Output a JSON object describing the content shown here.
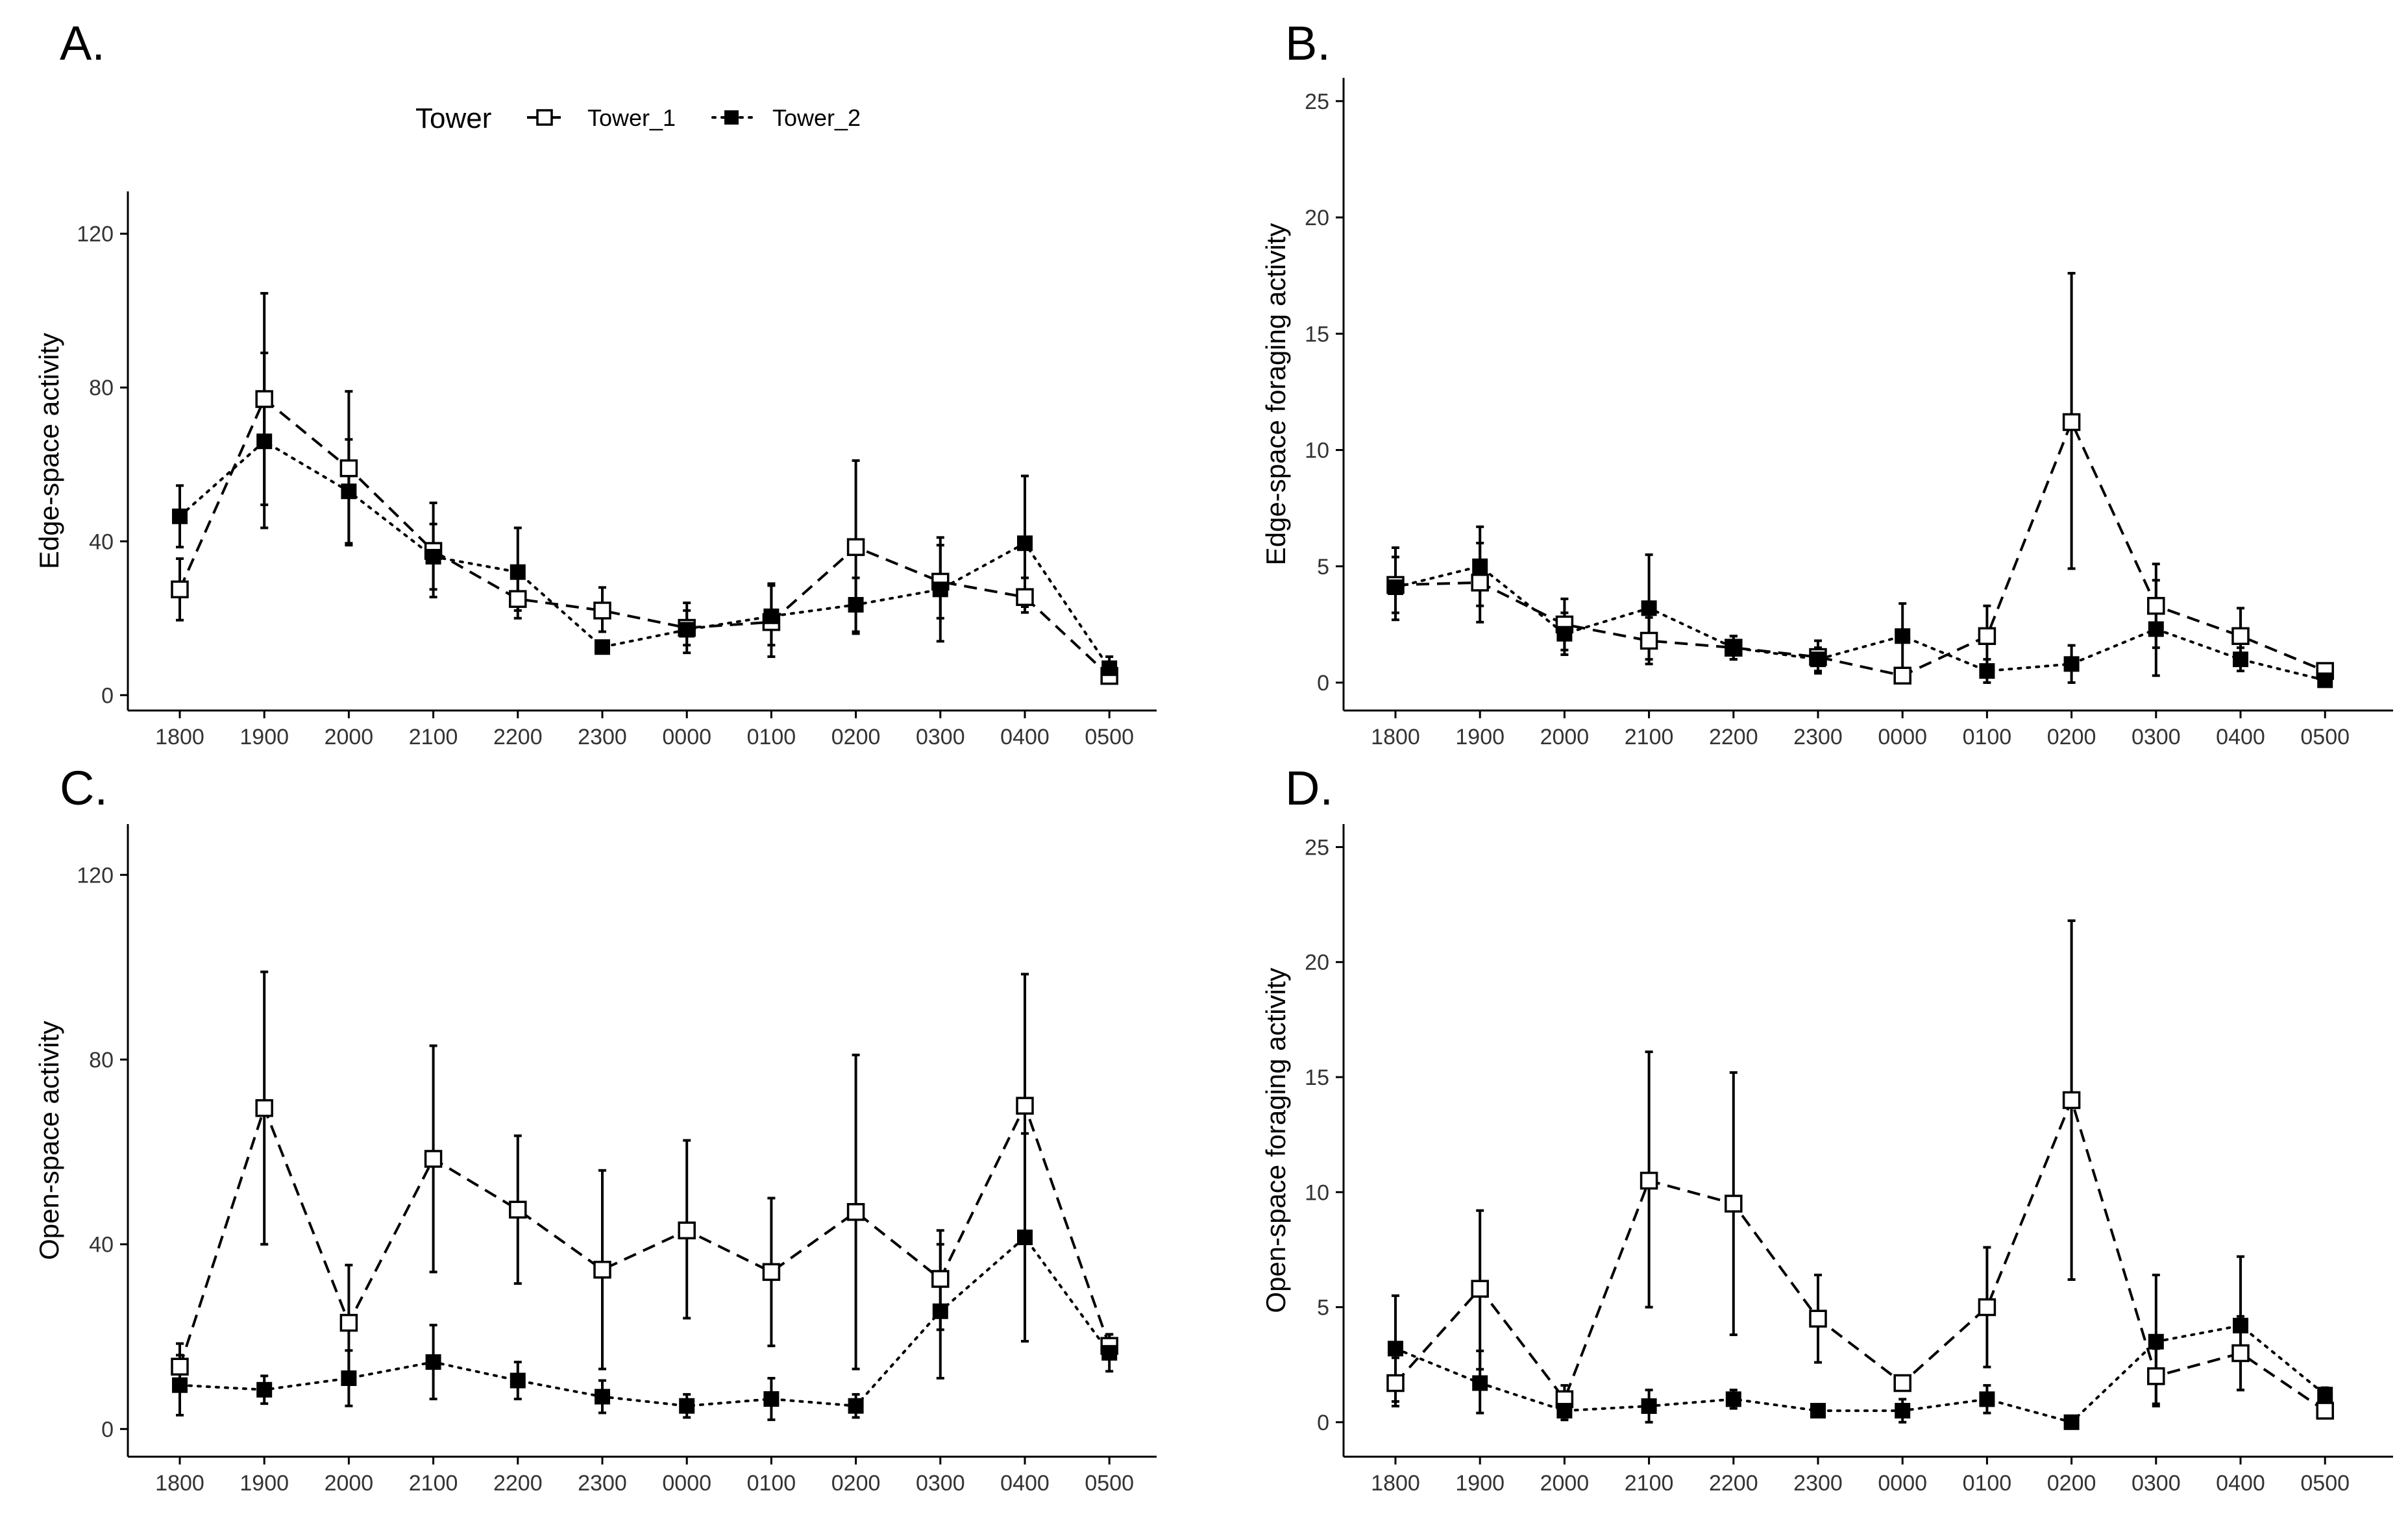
{
  "legend": {
    "title": "Tower",
    "entries": [
      {
        "label": "Tower_1",
        "marker": "open-square",
        "line": "dashed"
      },
      {
        "label": "Tower_2",
        "marker": "filled-square",
        "line": "dotted"
      }
    ]
  },
  "chart_data": [
    {
      "panel": "A.",
      "type": "line",
      "ylabel": "Edge-space activity",
      "xlabel": "",
      "categories": [
        "1800",
        "1900",
        "2000",
        "2100",
        "2200",
        "2300",
        "0000",
        "0100",
        "0200",
        "0300",
        "0400",
        "0500"
      ],
      "ylim": [
        -4,
        131
      ],
      "yticks": [
        0,
        40,
        80,
        120
      ],
      "legend": "top-center",
      "series": [
        {
          "name": "Tower_1",
          "values": [
            27.5,
            77.0,
            59.0,
            37.5,
            25.0,
            22.0,
            17.5,
            19.0,
            38.5,
            29.5,
            25.5,
            5.0
          ],
          "err_low": [
            19.5,
            49.5,
            39.5,
            25.5,
            20.0,
            16.5,
            11.0,
            10.0,
            16.0,
            14.0,
            21.5,
            3.5
          ],
          "err_high": [
            35.5,
            104.5,
            79.0,
            50.0,
            30.5,
            28.0,
            24.0,
            29.0,
            61.0,
            41.0,
            30.5,
            7.0
          ]
        },
        {
          "name": "Tower_2",
          "values": [
            46.5,
            66.0,
            53.0,
            36.0,
            32.0,
            12.5,
            17.0,
            20.5,
            23.5,
            27.5,
            39.5,
            7.0
          ],
          "err_low": [
            38.5,
            43.5,
            39.0,
            27.5,
            22.0,
            11.5,
            13.0,
            13.0,
            16.5,
            20.0,
            23.0,
            4.0
          ],
          "err_high": [
            54.5,
            89.0,
            66.5,
            44.5,
            43.5,
            13.5,
            22.0,
            28.5,
            30.5,
            39.0,
            57.0,
            10.0
          ]
        }
      ]
    },
    {
      "panel": "B.",
      "type": "line",
      "ylabel": "Edge-space foraging activity",
      "xlabel": "",
      "categories": [
        "1800",
        "1900",
        "2000",
        "2100",
        "2200",
        "2300",
        "0000",
        "0100",
        "0200",
        "0300",
        "0400",
        "0500"
      ],
      "ylim": [
        -1.2,
        26.0
      ],
      "yticks": [
        0,
        5,
        10,
        15,
        20,
        25
      ],
      "series": [
        {
          "name": "Tower_1",
          "values": [
            4.2,
            4.3,
            2.5,
            1.8,
            1.5,
            1.1,
            0.3,
            2.0,
            11.2,
            3.3,
            2.0,
            0.5
          ],
          "err_low": [
            3.0,
            2.6,
            1.4,
            0.8,
            1.0,
            0.4,
            0.0,
            0.7,
            4.9,
            1.5,
            0.8,
            0.2
          ],
          "err_high": [
            5.4,
            6.0,
            3.6,
            2.8,
            2.0,
            1.8,
            0.6,
            3.3,
            17.6,
            5.1,
            3.2,
            0.8
          ]
        },
        {
          "name": "Tower_2",
          "values": [
            4.1,
            5.0,
            2.1,
            3.2,
            1.5,
            1.0,
            2.0,
            0.5,
            0.8,
            2.3,
            1.0,
            0.1
          ],
          "err_low": [
            2.7,
            3.3,
            1.2,
            1.0,
            1.0,
            0.5,
            0.6,
            0.0,
            0.0,
            0.3,
            0.5,
            0.0
          ],
          "err_high": [
            5.8,
            6.7,
            3.0,
            5.5,
            2.0,
            1.5,
            3.4,
            1.0,
            1.6,
            4.4,
            1.5,
            0.3
          ]
        }
      ]
    },
    {
      "panel": "C.",
      "type": "line",
      "ylabel": "Open-space activity",
      "xlabel": "",
      "categories": [
        "1800",
        "1900",
        "2000",
        "2100",
        "2200",
        "2300",
        "0000",
        "0100",
        "0200",
        "0300",
        "0400",
        "0500"
      ],
      "ylim": [
        -6,
        131
      ],
      "yticks": [
        0,
        40,
        80,
        120
      ],
      "series": [
        {
          "name": "Tower_1",
          "values": [
            13.5,
            69.5,
            23.0,
            58.5,
            47.5,
            34.5,
            43.0,
            34.0,
            47.0,
            32.5,
            70.0,
            18.0
          ],
          "err_low": [
            8.5,
            40.0,
            10.5,
            34.0,
            31.5,
            13.0,
            24.0,
            18.0,
            13.0,
            21.5,
            19.0,
            15.5
          ],
          "err_high": [
            18.5,
            99.0,
            35.5,
            83.0,
            63.5,
            56.0,
            62.5,
            50.0,
            81.0,
            43.0,
            98.5,
            20.5
          ]
        },
        {
          "name": "Tower_2",
          "values": [
            9.5,
            8.5,
            11.0,
            14.5,
            10.5,
            7.0,
            5.0,
            6.5,
            5.0,
            25.5,
            41.5,
            16.5
          ],
          "err_low": [
            3.0,
            5.5,
            5.0,
            6.5,
            6.5,
            3.5,
            2.5,
            2.0,
            2.5,
            11.0,
            19.0,
            12.5
          ],
          "err_high": [
            16.0,
            11.5,
            17.0,
            22.5,
            14.5,
            10.5,
            7.5,
            11.0,
            7.5,
            40.0,
            64.0,
            20.5
          ]
        }
      ]
    },
    {
      "panel": "D.",
      "type": "line",
      "ylabel": "Open-space foraging activity",
      "xlabel": "",
      "categories": [
        "1800",
        "1900",
        "2000",
        "2100",
        "2200",
        "2300",
        "0000",
        "0100",
        "0200",
        "0300",
        "0400",
        "0500"
      ],
      "ylim": [
        -1.5,
        26.0
      ],
      "yticks": [
        0,
        5,
        10,
        15,
        20,
        25
      ],
      "series": [
        {
          "name": "Tower_1",
          "values": [
            1.7,
            5.8,
            1.0,
            10.5,
            9.5,
            4.5,
            1.7,
            5.0,
            14.0,
            2.0,
            3.0,
            0.5
          ],
          "err_low": [
            0.7,
            2.3,
            0.4,
            5.0,
            3.8,
            2.6,
            1.4,
            2.4,
            6.2,
            0.8,
            1.4,
            0.3
          ],
          "err_high": [
            2.8,
            9.2,
            1.6,
            16.1,
            15.2,
            6.4,
            2.0,
            7.6,
            21.8,
            3.2,
            4.6,
            0.7
          ]
        },
        {
          "name": "Tower_2",
          "values": [
            3.2,
            1.7,
            0.5,
            0.7,
            1.0,
            0.5,
            0.5,
            1.0,
            0.0,
            3.5,
            4.2,
            1.2
          ],
          "err_low": [
            0.9,
            0.4,
            0.1,
            0.0,
            0.6,
            0.3,
            0.0,
            0.4,
            0.0,
            0.7,
            1.4,
            0.9
          ],
          "err_high": [
            5.5,
            3.1,
            0.9,
            1.4,
            1.4,
            0.7,
            1.0,
            1.6,
            0.1,
            6.4,
            7.2,
            1.5
          ]
        }
      ]
    }
  ]
}
